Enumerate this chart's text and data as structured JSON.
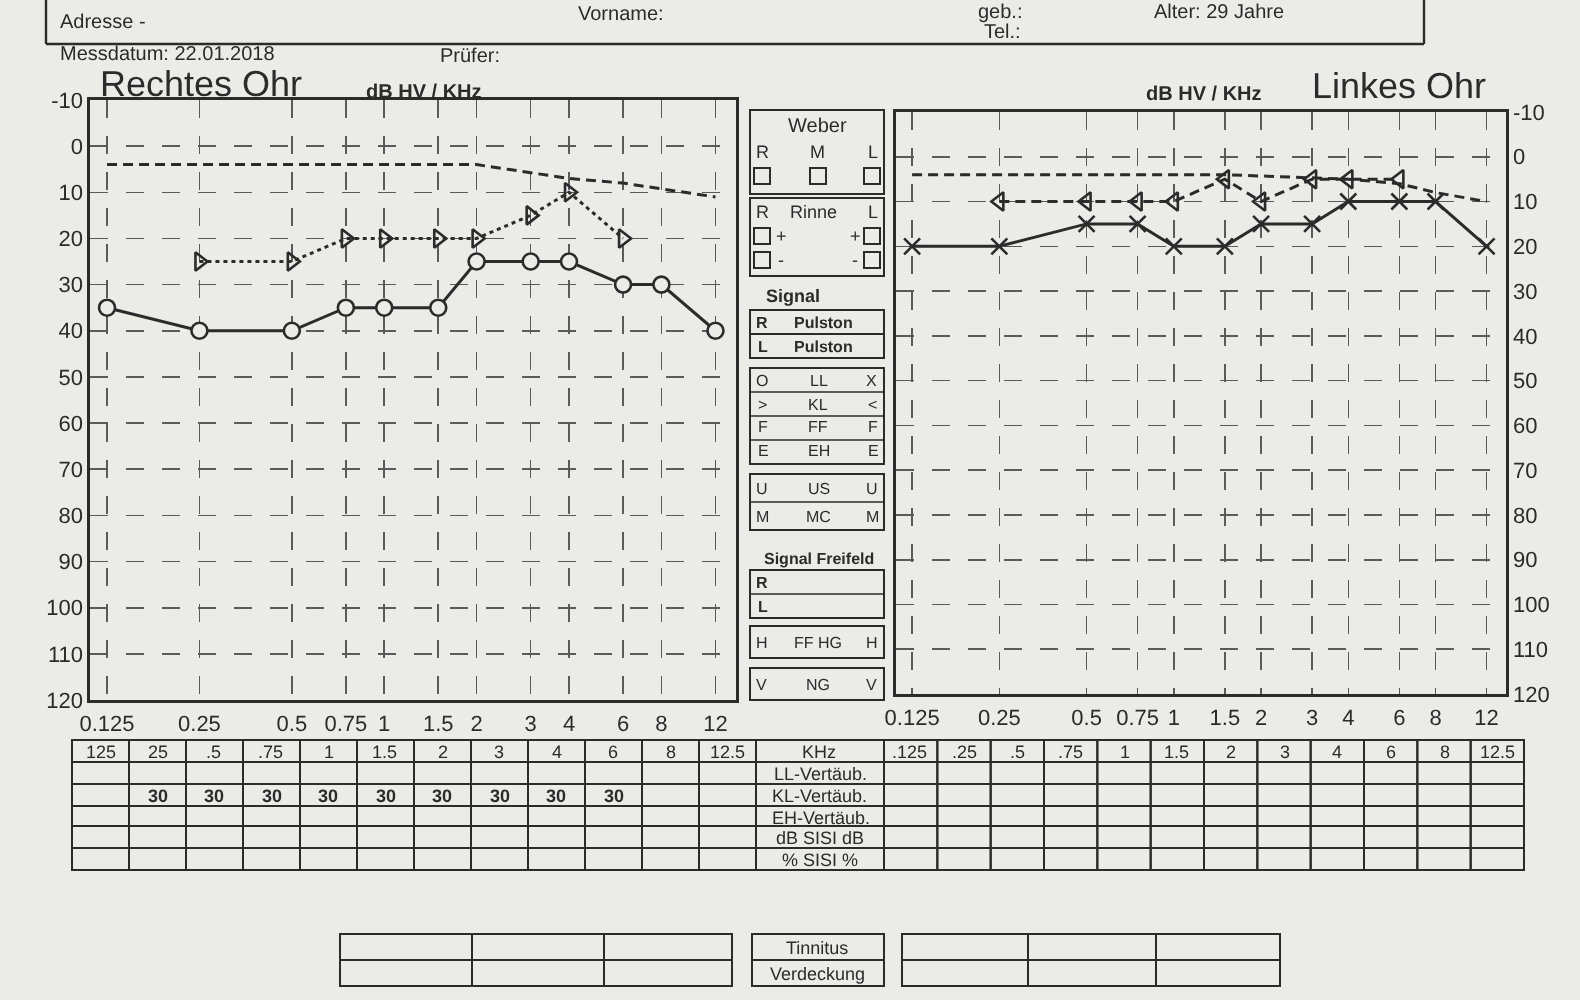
{
  "chart_data": [
    {
      "type": "line",
      "title": "Rechtes Ohr",
      "subtitle": "dB HV / KHz",
      "annotations": [
        "Adresse -",
        "Messdatum: 22.01.2018",
        "Prüfer:"
      ],
      "x": [
        0.125,
        0.25,
        0.5,
        0.75,
        1,
        1.5,
        2,
        3,
        4,
        6,
        8,
        12
      ],
      "series": [
        {
          "color": "#2b2b2b",
          "x": [
            0.125,
            2,
            4,
            6,
            12
          ],
          "values": [
            4,
            4,
            7,
            8,
            11
          ],
          "marker": "none",
          "line_style": "dashed"
        },
        {
          "color": "#2b2b2b",
          "x": [
            0.25,
            0.5,
            0.75,
            1,
            1.5,
            2,
            3,
            4,
            6
          ],
          "values": [
            25,
            25,
            20,
            20,
            20,
            20,
            15,
            10,
            20
          ],
          "marker": "triangle",
          "line_style": "dotted"
        },
        {
          "color": "#2b2b2b",
          "values": [
            35,
            40,
            40,
            35,
            35,
            35,
            25,
            25,
            25,
            30,
            30,
            40
          ],
          "marker": "circle",
          "line_style": "solid"
        }
      ],
      "log": "x",
      "xlim": [
        0.11,
        14
      ],
      "ylim": [
        120,
        -10
      ],
      "xticks": [
        0.125,
        0.25,
        0.5,
        0.75,
        1,
        1.5,
        2,
        3,
        4,
        6,
        8,
        12
      ],
      "yticks": [
        -10,
        0,
        10,
        20,
        30,
        40,
        50,
        60,
        70,
        80,
        90,
        100,
        110,
        120
      ],
      "grid": true
    },
    {
      "type": "line",
      "title": "Linkes Ohr",
      "subtitle": "dB HV / KHz",
      "annotations": [
        "Vorname:",
        "geb.:",
        "Alter: 29 Jahre",
        "Tel.:"
      ],
      "x": [
        0.125,
        0.25,
        0.5,
        0.75,
        1,
        1.5,
        2,
        3,
        4,
        6,
        8,
        12
      ],
      "series": [
        {
          "color": "#2b2b2b",
          "x": [
            0.125,
            1.5,
            4,
            6,
            8,
            12
          ],
          "values": [
            4,
            4,
            5,
            6,
            8,
            10
          ],
          "marker": "none",
          "line_style": "dashed"
        },
        {
          "color": "#2b2b2b",
          "x": [
            0.25,
            0.5,
            0.75,
            1,
            1.5,
            2,
            3,
            4,
            6
          ],
          "values": [
            10,
            10,
            10,
            10,
            5,
            10,
            5,
            5,
            5
          ],
          "marker": "triangle",
          "line_style": "dashed"
        },
        {
          "color": "#2b2b2b",
          "values": [
            20,
            20,
            15,
            15,
            20,
            20,
            15,
            15,
            10,
            10,
            10,
            20
          ],
          "marker": "cross",
          "line_style": "solid"
        }
      ],
      "log": "x",
      "xlim": [
        0.11,
        14
      ],
      "ylim": [
        120,
        -10
      ],
      "xticks": [
        0.125,
        0.25,
        0.5,
        0.75,
        1,
        1.5,
        2,
        3,
        4,
        6,
        8,
        12
      ],
      "yticks": [
        -10,
        0,
        10,
        20,
        30,
        40,
        50,
        60,
        70,
        80,
        90,
        100,
        110,
        120
      ],
      "grid": true
    },
    {
      "type": "other",
      "annotations": [
        "Weber",
        "R",
        "M",
        "L",
        "R",
        "Rinne",
        "L",
        "+",
        "+",
        "-",
        "-",
        "Signal",
        "R",
        "Pulston",
        "L",
        "Pulston",
        "O",
        "LL",
        "X",
        ">",
        "KL",
        "<",
        "F",
        "FF",
        "F",
        "E",
        "EH",
        "E",
        "U",
        "US",
        "U",
        "M",
        "MC",
        "M",
        "Signal Freifeld",
        "R",
        "L",
        "H",
        "FF HG",
        "H",
        "V",
        "NG",
        "V"
      ]
    },
    {
      "type": "heatmap",
      "annotations": [
        "KHz"
      ],
      "data_labels": true,
      "categories": [
        "125",
        "25",
        ".5",
        ".75",
        "1",
        "1.5",
        "2",
        "3",
        "4",
        "6",
        "8",
        "12.5",
        ".125",
        ".25",
        ".5",
        ".75",
        "1",
        "1.5",
        "2",
        "3",
        "4",
        "6",
        "8",
        "12.5"
      ],
      "y_categories": [
        "LL-Vertäub.",
        "KL-Vertäub.",
        "EH-Vertäub.",
        "dB SISI dB",
        "% SISI %"
      ],
      "cells": [
        [
          null,
          null,
          null,
          null,
          null,
          null,
          null,
          null,
          null,
          null,
          null,
          null,
          null,
          null,
          null,
          null,
          null,
          null,
          null,
          null,
          null,
          null,
          null,
          null
        ],
        [
          null,
          30,
          30,
          30,
          30,
          30,
          30,
          30,
          30,
          30,
          null,
          null,
          null,
          null,
          null,
          null,
          null,
          null,
          null,
          null,
          null,
          null,
          null,
          null
        ],
        [
          null,
          null,
          null,
          null,
          null,
          null,
          null,
          null,
          null,
          null,
          null,
          null,
          null,
          null,
          null,
          null,
          null,
          null,
          null,
          null,
          null,
          null,
          null,
          null
        ],
        [
          null,
          null,
          null,
          null,
          null,
          null,
          null,
          null,
          null,
          null,
          null,
          null,
          null,
          null,
          null,
          null,
          null,
          null,
          null,
          null,
          null,
          null,
          null,
          null
        ],
        [
          null,
          null,
          null,
          null,
          null,
          null,
          null,
          null,
          null,
          null,
          null,
          null,
          null,
          null,
          null,
          null,
          null,
          null,
          null,
          null,
          null,
          null,
          null,
          null
        ]
      ]
    },
    {
      "type": "other",
      "y_categories": [
        "Tinnitus",
        "Verdeckung"
      ],
      "cells": [
        [
          null,
          null,
          null,
          null,
          null,
          null
        ],
        [
          null,
          null,
          null,
          null,
          null,
          null
        ]
      ]
    }
  ]
}
